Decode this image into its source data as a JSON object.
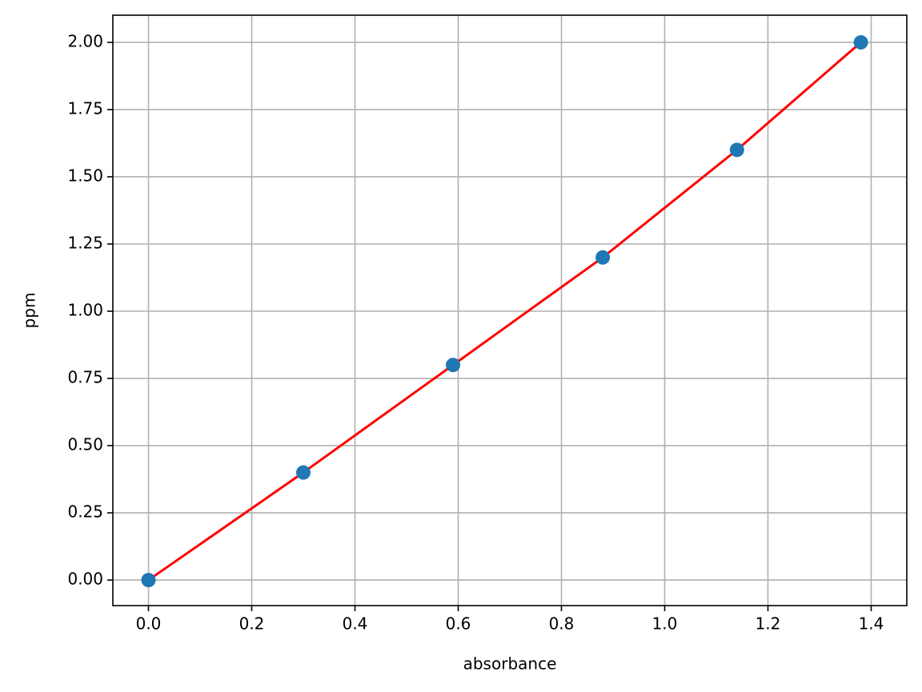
{
  "chart_data": {
    "type": "scatter",
    "xlabel": "absorbance",
    "ylabel": "ppm",
    "x": [
      0,
      0.3,
      0.59,
      0.88,
      1.14,
      1.38
    ],
    "series": [
      {
        "type": "line",
        "color": "#ff0000",
        "values": [
          0,
          0.4,
          0.8,
          1.2,
          1.6,
          2.0
        ]
      },
      {
        "type": "scatter",
        "color": "#1f77b4",
        "values": [
          0,
          0.4,
          0.8,
          1.2,
          1.6,
          2.0
        ]
      }
    ],
    "xlim": [
      -0.069,
      1.469
    ],
    "ylim": [
      -0.095,
      2.101
    ],
    "xticks": [
      {
        "value": 0,
        "label": "0.0"
      },
      0.2,
      0.4,
      0.6,
      0.8,
      {
        "value": 1,
        "label": "1.0"
      },
      1.2,
      1.4
    ],
    "yticks": [
      {
        "value": 0,
        "label": "0.00"
      },
      0.25,
      {
        "value": 0.5,
        "label": "0.50"
      },
      0.75,
      {
        "value": 1,
        "label": "1.00"
      },
      1.25,
      {
        "value": 1.5,
        "label": "1.50"
      },
      1.75,
      {
        "value": 2,
        "label": "2.00"
      }
    ],
    "grid": true
  }
}
